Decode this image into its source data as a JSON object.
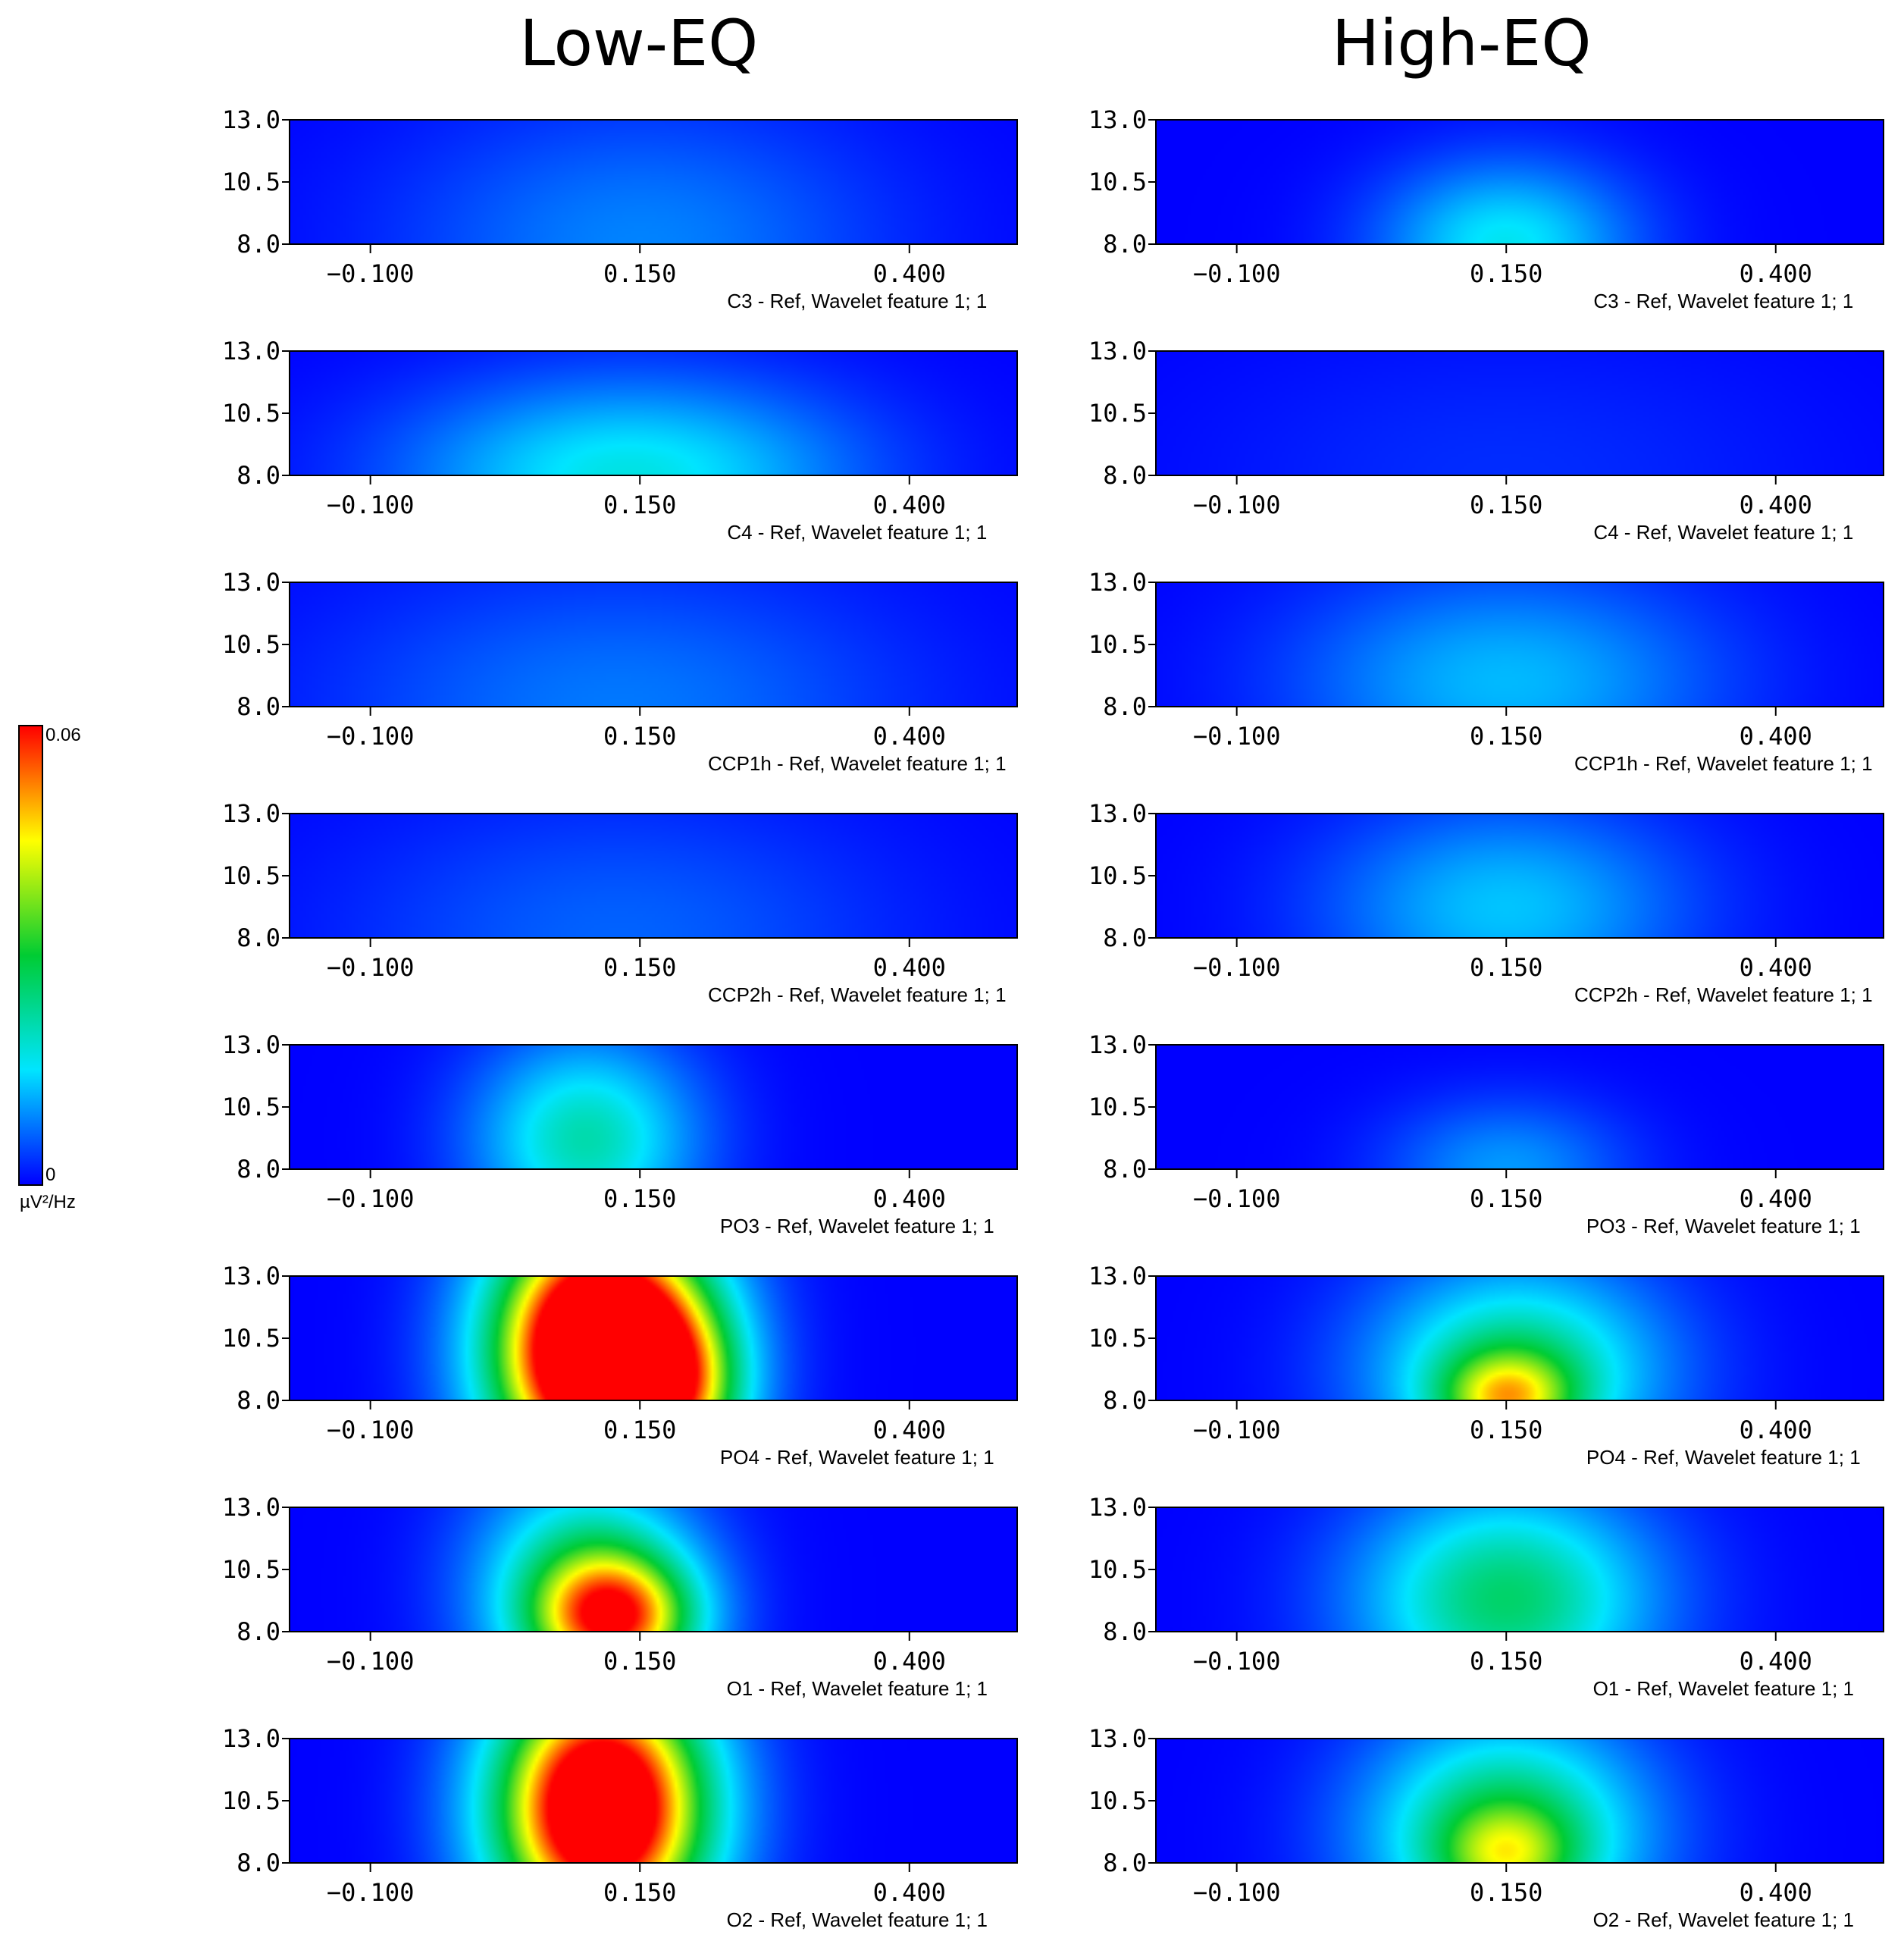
{
  "columns": [
    {
      "title": "Low-EQ"
    },
    {
      "title": "High-EQ"
    }
  ],
  "colorbar": {
    "max_label": "0.06",
    "min_label": "0",
    "unit": "µV²/Hz",
    "stops": [
      "#0000ff",
      "#00e5ff",
      "#00cc33",
      "#ffff00",
      "#ff0000"
    ]
  },
  "chart_data": {
    "type": "heatmap",
    "x": {
      "min": -0.175,
      "max": 0.5,
      "ticks": [
        -0.1,
        0.15,
        0.4
      ],
      "tick_labels": [
        "−0.100",
        "0.150",
        "0.400"
      ]
    },
    "y": {
      "min": 8.0,
      "max": 13.0,
      "ticks": [
        13.0,
        10.5,
        8.0
      ],
      "tick_labels": [
        "13.0",
        "10.5",
        "8.0"
      ]
    },
    "value_range": [
      0,
      0.06
    ],
    "value_unit": "µV²/Hz",
    "panels": [
      {
        "column": 0,
        "label": "C3 - Ref, Wavelet feature 1; 1",
        "peaks": [
          {
            "x": 0.15,
            "y": 8.0,
            "sx": 0.16,
            "sy": 4.0,
            "a": 0.012
          }
        ]
      },
      {
        "column": 0,
        "label": "C4 - Ref, Wavelet feature 1; 1",
        "peaks": [
          {
            "x": 0.14,
            "y": 8.0,
            "sx": 0.15,
            "sy": 2.8,
            "a": 0.023
          }
        ]
      },
      {
        "column": 0,
        "label": "CCP1h - Ref, Wavelet feature 1; 1",
        "peaks": [
          {
            "x": 0.13,
            "y": 8.0,
            "sx": 0.19,
            "sy": 4.0,
            "a": 0.011
          }
        ]
      },
      {
        "column": 0,
        "label": "CCP2h - Ref, Wavelet feature 1; 1",
        "peaks": [
          {
            "x": 0.13,
            "y": 8.0,
            "sx": 0.18,
            "sy": 4.0,
            "a": 0.009
          }
        ]
      },
      {
        "column": 0,
        "label": "PO3 - Ref, Wavelet feature 1; 1",
        "peaks": [
          {
            "x": 0.1,
            "y": 9.2,
            "sx": 0.075,
            "sy": 3.0,
            "a": 0.027
          }
        ]
      },
      {
        "column": 0,
        "label": "PO4 - Ref, Wavelet feature 1; 1",
        "peaks": [
          {
            "x": 0.115,
            "y": 10.0,
            "sx": 0.075,
            "sy": 4.0,
            "a": 0.085
          },
          {
            "x": 0.19,
            "y": 8.3,
            "sx": 0.045,
            "sy": 2.5,
            "a": 0.02
          }
        ]
      },
      {
        "column": 0,
        "label": "O1 - Ref, Wavelet feature 1; 1",
        "peaks": [
          {
            "x": 0.1,
            "y": 9.8,
            "sx": 0.075,
            "sy": 3.5,
            "a": 0.03
          },
          {
            "x": 0.13,
            "y": 8.5,
            "sx": 0.055,
            "sy": 1.9,
            "a": 0.038
          }
        ]
      },
      {
        "column": 0,
        "label": "O2 - Ref, Wavelet feature 1; 1",
        "peaks": [
          {
            "x": 0.115,
            "y": 10.2,
            "sx": 0.075,
            "sy": 4.0,
            "a": 0.075
          }
        ]
      },
      {
        "column": 1,
        "label": "C3 - Ref, Wavelet feature 1; 1",
        "peaks": [
          {
            "x": 0.15,
            "y": 8.0,
            "sx": 0.085,
            "sy": 2.4,
            "a": 0.022
          }
        ]
      },
      {
        "column": 1,
        "label": "C4 - Ref, Wavelet feature 1; 1",
        "peaks": [
          {
            "x": 0.15,
            "y": 8.0,
            "sx": 0.2,
            "sy": 4.0,
            "a": 0.004
          }
        ]
      },
      {
        "column": 1,
        "label": "CCP1h - Ref, Wavelet feature 1; 1",
        "peaks": [
          {
            "x": 0.15,
            "y": 9.0,
            "sx": 0.14,
            "sy": 3.2,
            "a": 0.017
          }
        ]
      },
      {
        "column": 1,
        "label": "CCP2h - Ref, Wavelet feature 1; 1",
        "peaks": [
          {
            "x": 0.15,
            "y": 9.2,
            "sx": 0.12,
            "sy": 3.0,
            "a": 0.018
          }
        ]
      },
      {
        "column": 1,
        "label": "PO3 - Ref, Wavelet feature 1; 1",
        "peaks": [
          {
            "x": 0.15,
            "y": 8.0,
            "sx": 0.08,
            "sy": 2.0,
            "a": 0.014
          }
        ]
      },
      {
        "column": 1,
        "label": "PO4 - Ref, Wavelet feature 1; 1",
        "peaks": [
          {
            "x": 0.16,
            "y": 9.2,
            "sx": 0.1,
            "sy": 3.2,
            "a": 0.03
          },
          {
            "x": 0.15,
            "y": 8.0,
            "sx": 0.045,
            "sy": 1.4,
            "a": 0.025
          }
        ]
      },
      {
        "column": 1,
        "label": "O1 - Ref, Wavelet feature 1; 1",
        "peaks": [
          {
            "x": 0.15,
            "y": 9.3,
            "sx": 0.1,
            "sy": 3.3,
            "a": 0.032
          }
        ]
      },
      {
        "column": 1,
        "label": "O2 - Ref, Wavelet feature 1; 1",
        "peaks": [
          {
            "x": 0.15,
            "y": 9.2,
            "sx": 0.095,
            "sy": 3.4,
            "a": 0.034
          },
          {
            "x": 0.15,
            "y": 8.2,
            "sx": 0.045,
            "sy": 1.5,
            "a": 0.016
          }
        ]
      }
    ]
  }
}
